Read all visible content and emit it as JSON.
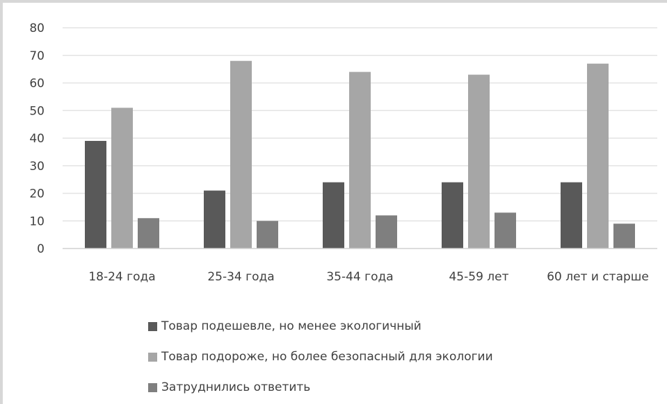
{
  "chart_data": {
    "type": "bar",
    "categories": [
      "18-24 года",
      "25-34 года",
      "35-44 года",
      "45-59 лет",
      "60 лет и старше"
    ],
    "series": [
      {
        "name": "Товар подешевле, но менее экологичный",
        "values": [
          39,
          21,
          24,
          24,
          24
        ],
        "color": "#595959"
      },
      {
        "name": "Товар подороже, но более безопасный для экологии",
        "values": [
          51,
          68,
          64,
          63,
          67
        ],
        "color": "#a6a6a6"
      },
      {
        "name": "Затруднились ответить",
        "values": [
          11,
          10,
          12,
          13,
          9
        ],
        "color": "#7f7f7f"
      }
    ],
    "ylim": [
      0,
      80
    ],
    "yticks": [
      0,
      10,
      20,
      30,
      40,
      50,
      60,
      70,
      80
    ],
    "grid": true,
    "legend_position": "bottom"
  }
}
